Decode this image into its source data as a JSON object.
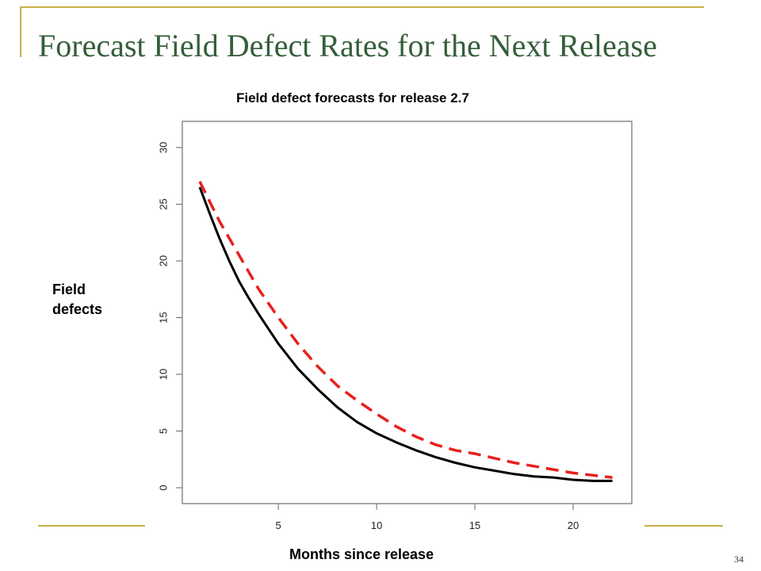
{
  "slide": {
    "title": "Forecast Field Defect Rates for the Next Release",
    "page_number": "34",
    "accent_color": "#c9b046",
    "title_color": "#355e3b"
  },
  "chart_data": {
    "type": "line",
    "title": "Field defect forecasts for release 2.7",
    "xlabel": "Months since release",
    "ylabel": "Field defects",
    "xlim": [
      0,
      23
    ],
    "ylim": [
      -1,
      32
    ],
    "xticks": [
      5,
      10,
      15,
      20
    ],
    "yticks": [
      0,
      5,
      10,
      15,
      20,
      25,
      30
    ],
    "grid": false,
    "series": [
      {
        "style": "solid",
        "color": "#000000",
        "x": [
          1,
          1.5,
          2,
          2.5,
          3,
          3.5,
          4,
          5,
          6,
          7,
          8,
          9,
          10,
          11,
          12,
          13,
          14,
          15,
          16,
          17,
          18,
          19,
          20,
          21,
          22
        ],
        "y": [
          26.5,
          24.2,
          22.0,
          20.0,
          18.2,
          16.7,
          15.3,
          12.7,
          10.5,
          8.7,
          7.1,
          5.8,
          4.8,
          4.0,
          3.3,
          2.7,
          2.2,
          1.8,
          1.5,
          1.2,
          1.0,
          0.9,
          0.7,
          0.6,
          0.6
        ]
      },
      {
        "style": "dashed",
        "color": "#e8201c",
        "x": [
          1,
          2,
          3,
          4,
          5,
          6,
          7,
          8,
          9,
          10,
          11,
          12,
          13,
          14,
          15,
          16,
          17,
          18,
          19,
          20,
          21,
          22
        ],
        "y": [
          27.0,
          23.5,
          20.5,
          17.5,
          15.0,
          12.7,
          10.7,
          9.0,
          7.7,
          6.5,
          5.4,
          4.5,
          3.8,
          3.3,
          3.0,
          2.6,
          2.2,
          1.9,
          1.6,
          1.3,
          1.1,
          0.9
        ]
      }
    ]
  }
}
